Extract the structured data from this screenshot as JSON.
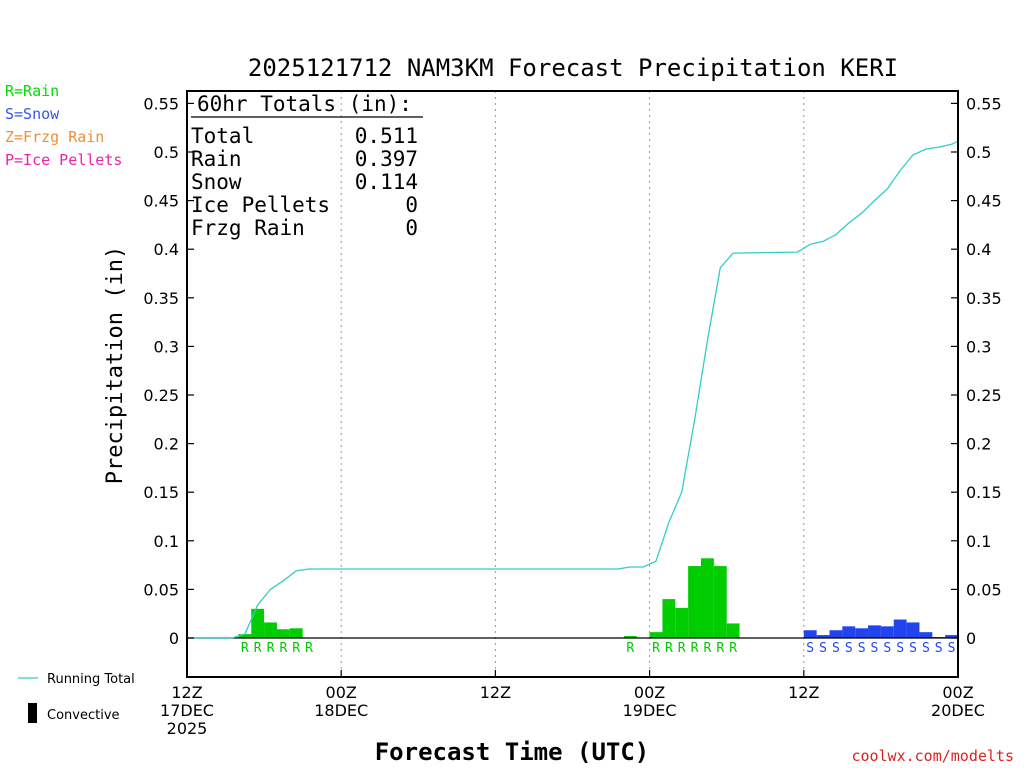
{
  "chart_data": {
    "type": "bar",
    "title": "2025121712 NAM3KM Forecast Precipitation KERI",
    "ylabel": "Precipitation (in)",
    "xlabel": "Forecast Time (UTC)",
    "ylim": [
      -0.04,
      0.56
    ],
    "yticks": [
      "0",
      "0.05",
      "0.1",
      "0.15",
      "0.2",
      "0.25",
      "0.3",
      "0.35",
      "0.4",
      "0.45",
      "0.5",
      "0.55"
    ],
    "ytick_values": [
      0,
      0.05,
      0.1,
      0.15,
      0.2,
      0.25,
      0.3,
      0.35,
      0.4,
      0.45,
      0.5,
      0.55
    ],
    "xlim_hours": [
      0,
      60
    ],
    "xticks": [
      {
        "hour": 0,
        "lines": [
          "12Z",
          "17DEC",
          "2025"
        ]
      },
      {
        "hour": 12,
        "lines": [
          "00Z",
          "18DEC"
        ]
      },
      {
        "hour": 24,
        "lines": [
          "12Z"
        ]
      },
      {
        "hour": 36,
        "lines": [
          "00Z",
          "19DEC"
        ]
      },
      {
        "hour": 48,
        "lines": [
          "12Z"
        ]
      },
      {
        "hour": 60,
        "lines": [
          "00Z",
          "20DEC"
        ]
      }
    ],
    "legend_types": [
      {
        "text": "R=Rain",
        "color": "#00dd00"
      },
      {
        "text": "S=Snow",
        "color": "#3355ee"
      },
      {
        "text": "Z=Frzg Rain",
        "color": "#f09030"
      },
      {
        "text": "P=Ice Pellets",
        "color": "#ee22aa"
      }
    ],
    "legend_lines": {
      "running_total": "Running Total",
      "convective": "Convective"
    },
    "totals": {
      "header": "60hr Totals (in):",
      "rows": [
        {
          "label": "Total",
          "value": "0.511"
        },
        {
          "label": "Rain",
          "value": "0.397"
        },
        {
          "label": "Snow",
          "value": "0.114"
        },
        {
          "label": "Ice Pellets",
          "value": "0"
        },
        {
          "label": "Frzg Rain",
          "value": "0"
        }
      ]
    },
    "colors": {
      "rain": "#00cc00",
      "snow": "#2244ee",
      "running_total": "#33cccc",
      "text": "#000000"
    },
    "bars": [
      {
        "hour": 4,
        "value": 0.004,
        "type": "R"
      },
      {
        "hour": 5,
        "value": 0.03,
        "type": "R"
      },
      {
        "hour": 6,
        "value": 0.016,
        "type": "R"
      },
      {
        "hour": 7,
        "value": 0.009,
        "type": "R"
      },
      {
        "hour": 8,
        "value": 0.01,
        "type": "R"
      },
      {
        "hour": 34,
        "value": 0.002,
        "type": "R"
      },
      {
        "hour": 36,
        "value": 0.006,
        "type": "R"
      },
      {
        "hour": 37,
        "value": 0.04,
        "type": "R"
      },
      {
        "hour": 38,
        "value": 0.031,
        "type": "R"
      },
      {
        "hour": 39,
        "value": 0.074,
        "type": "R"
      },
      {
        "hour": 40,
        "value": 0.082,
        "type": "R"
      },
      {
        "hour": 41,
        "value": 0.074,
        "type": "R"
      },
      {
        "hour": 42,
        "value": 0.015,
        "type": "R"
      },
      {
        "hour": 48,
        "value": 0.008,
        "type": "S"
      },
      {
        "hour": 49,
        "value": 0.003,
        "type": "S"
      },
      {
        "hour": 50,
        "value": 0.008,
        "type": "S"
      },
      {
        "hour": 51,
        "value": 0.012,
        "type": "S"
      },
      {
        "hour": 52,
        "value": 0.01,
        "type": "S"
      },
      {
        "hour": 53,
        "value": 0.013,
        "type": "S"
      },
      {
        "hour": 54,
        "value": 0.012,
        "type": "S"
      },
      {
        "hour": 55,
        "value": 0.019,
        "type": "S"
      },
      {
        "hour": 56,
        "value": 0.016,
        "type": "S"
      },
      {
        "hour": 57,
        "value": 0.006,
        "type": "S"
      },
      {
        "hour": 58,
        "value": 0.001,
        "type": "S"
      },
      {
        "hour": 59,
        "value": 0.003,
        "type": "S"
      }
    ],
    "type_labels": [
      {
        "hour": 4.5,
        "text": "R"
      },
      {
        "hour": 5.5,
        "text": "R"
      },
      {
        "hour": 6.5,
        "text": "R"
      },
      {
        "hour": 7.5,
        "text": "R"
      },
      {
        "hour": 8.5,
        "text": "R"
      },
      {
        "hour": 9.5,
        "text": "R"
      },
      {
        "hour": 34.5,
        "text": "R"
      },
      {
        "hour": 36.5,
        "text": "R"
      },
      {
        "hour": 37.5,
        "text": "R"
      },
      {
        "hour": 38.5,
        "text": "R"
      },
      {
        "hour": 39.5,
        "text": "R"
      },
      {
        "hour": 40.5,
        "text": "R"
      },
      {
        "hour": 41.5,
        "text": "R"
      },
      {
        "hour": 42.5,
        "text": "R"
      },
      {
        "hour": 48.5,
        "text": "S"
      },
      {
        "hour": 49.5,
        "text": "S"
      },
      {
        "hour": 50.5,
        "text": "S"
      },
      {
        "hour": 51.5,
        "text": "S"
      },
      {
        "hour": 52.5,
        "text": "S"
      },
      {
        "hour": 53.5,
        "text": "S"
      },
      {
        "hour": 54.5,
        "text": "S"
      },
      {
        "hour": 55.5,
        "text": "S"
      },
      {
        "hour": 56.5,
        "text": "S"
      },
      {
        "hour": 57.5,
        "text": "S"
      },
      {
        "hour": 58.5,
        "text": "S"
      },
      {
        "hour": 59.5,
        "text": "S"
      }
    ],
    "running_total": [
      {
        "hour": 0.5,
        "value": 0
      },
      {
        "hour": 3.5,
        "value": 0
      },
      {
        "hour": 4.5,
        "value": 0.004
      },
      {
        "hour": 5.5,
        "value": 0.034
      },
      {
        "hour": 6.5,
        "value": 0.05
      },
      {
        "hour": 7.5,
        "value": 0.059
      },
      {
        "hour": 8.5,
        "value": 0.069
      },
      {
        "hour": 9.5,
        "value": 0.071
      },
      {
        "hour": 33.5,
        "value": 0.071
      },
      {
        "hour": 34.5,
        "value": 0.073
      },
      {
        "hour": 35.5,
        "value": 0.073
      },
      {
        "hour": 36.5,
        "value": 0.079
      },
      {
        "hour": 37.5,
        "value": 0.119
      },
      {
        "hour": 38.5,
        "value": 0.15
      },
      {
        "hour": 39.5,
        "value": 0.224
      },
      {
        "hour": 40.5,
        "value": 0.306
      },
      {
        "hour": 41.5,
        "value": 0.381
      },
      {
        "hour": 42.5,
        "value": 0.396
      },
      {
        "hour": 47.5,
        "value": 0.397
      },
      {
        "hour": 48.5,
        "value": 0.405
      },
      {
        "hour": 49.5,
        "value": 0.408
      },
      {
        "hour": 50.5,
        "value": 0.415
      },
      {
        "hour": 51.5,
        "value": 0.427
      },
      {
        "hour": 52.5,
        "value": 0.437
      },
      {
        "hour": 53.5,
        "value": 0.45
      },
      {
        "hour": 54.5,
        "value": 0.462
      },
      {
        "hour": 55.5,
        "value": 0.481
      },
      {
        "hour": 56.5,
        "value": 0.497
      },
      {
        "hour": 57.5,
        "value": 0.503
      },
      {
        "hour": 58.5,
        "value": 0.505
      },
      {
        "hour": 59.5,
        "value": 0.508
      },
      {
        "hour": 60,
        "value": 0.511
      }
    ],
    "credit": "coolwx.com/modelts"
  }
}
